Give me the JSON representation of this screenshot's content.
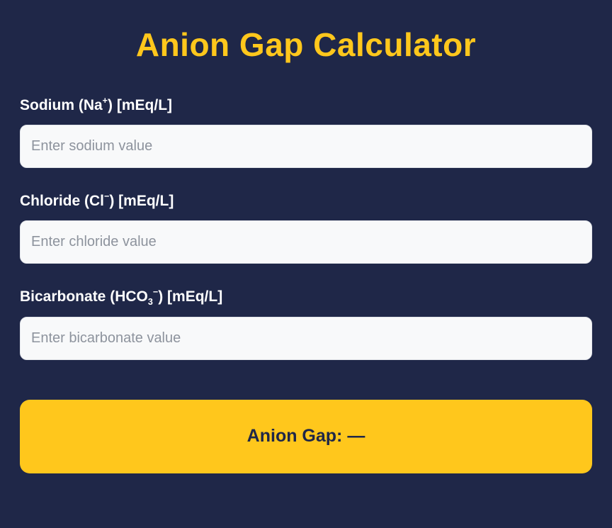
{
  "page": {
    "title": "Anion Gap Calculator"
  },
  "form": {
    "fields": [
      {
        "name": "sodium",
        "label_prefix": "Sodium (Na",
        "sub": "",
        "sup": "+",
        "label_suffix": ") [mEq/L]",
        "placeholder": "Enter sodium value",
        "value": ""
      },
      {
        "name": "chloride",
        "label_prefix": "Chloride (Cl",
        "sub": "",
        "sup": "−",
        "label_suffix": ") [mEq/L]",
        "placeholder": "Enter chloride value",
        "value": ""
      },
      {
        "name": "bicarbonate",
        "label_prefix": "Bicarbonate (HCO",
        "sub": "3",
        "sup": "−",
        "label_suffix": ") [mEq/L]",
        "placeholder": "Enter bicarbonate value",
        "value": ""
      }
    ]
  },
  "result": {
    "label": "Anion Gap: —"
  },
  "colors": {
    "background": "#1f2748",
    "accent_yellow": "#ffc71c",
    "input_background": "#f8f9fa",
    "label_text": "#ffffff",
    "placeholder_text": "#8d939d",
    "result_text": "#1f2748"
  }
}
